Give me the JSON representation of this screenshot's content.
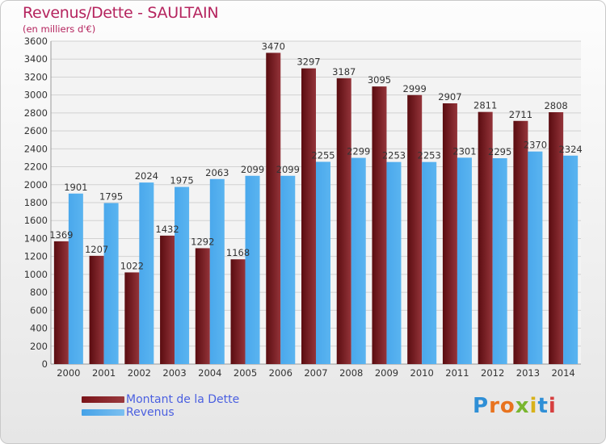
{
  "title": "Revenus/Dette - SAULTAIN",
  "subtitle": "(en milliers d'€)",
  "legend": {
    "debt_label": "Montant de la Dette",
    "revenue_label": "Revenus"
  },
  "logo_text": "Proxiti",
  "colors": {
    "debt": "#7a1419",
    "revenue": "#45a2e8",
    "title": "#b5245e",
    "legend_text": "#4a5fe0"
  },
  "chart_data": {
    "type": "bar",
    "categories": [
      "2000",
      "2001",
      "2002",
      "2003",
      "2004",
      "2005",
      "2006",
      "2007",
      "2008",
      "2009",
      "2010",
      "2011",
      "2012",
      "2013",
      "2014"
    ],
    "series": [
      {
        "name": "Montant de la Dette",
        "values": [
          1369,
          1207,
          1022,
          1432,
          1292,
          1168,
          3470,
          3297,
          3187,
          3095,
          2999,
          2907,
          2811,
          2711,
          2808
        ]
      },
      {
        "name": "Revenus",
        "values": [
          1901,
          1795,
          2024,
          1975,
          2063,
          2099,
          2099,
          2255,
          2299,
          2253,
          2253,
          2301,
          2295,
          2370,
          2324
        ]
      }
    ],
    "ylim": [
      0,
      3600
    ],
    "yticks": [
      0,
      200,
      400,
      600,
      800,
      1000,
      1200,
      1400,
      1600,
      1800,
      2000,
      2200,
      2400,
      2600,
      2800,
      3000,
      3200,
      3400,
      3600
    ],
    "grid": true,
    "legend_position": "bottom-left"
  }
}
